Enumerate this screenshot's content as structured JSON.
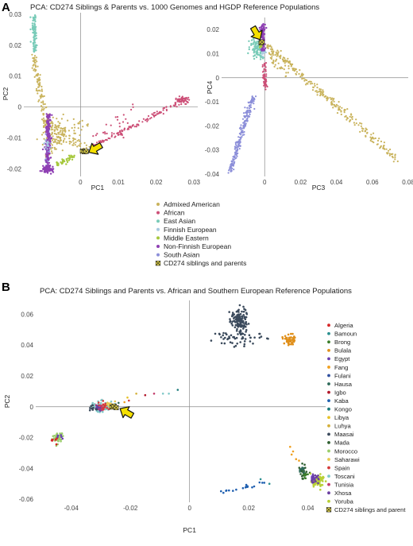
{
  "panel_a": {
    "letter": "A",
    "title": "PCA: CD274 Siblings & Parents vs. 1000 Genomes and HGDP Reference Populations"
  },
  "panel_b": {
    "letter": "B",
    "title": "PCA: CD274 Siblings and Parents vs. African and Southern European Reference Populations"
  },
  "legend_a": [
    {
      "name": "Admixed American",
      "color": "#c9b35c"
    },
    {
      "name": "African",
      "color": "#cc4f77"
    },
    {
      "name": "East Asian",
      "color": "#79cbb8"
    },
    {
      "name": "Finnish European",
      "color": "#a7c8e0"
    },
    {
      "name": "Middle Eastern",
      "color": "#a6c83d"
    },
    {
      "name": "Non-Finnish European",
      "color": "#8e3fb3"
    },
    {
      "name": "South Asian",
      "color": "#8c8fd9"
    },
    {
      "name": "CD274 siblings and parents",
      "color": "#f5e64a",
      "symbol": "cross"
    }
  ],
  "legend_b": [
    {
      "name": "Algeria",
      "color": "#d62728"
    },
    {
      "name": "Bamoun",
      "color": "#2a8f8f"
    },
    {
      "name": "Brong",
      "color": "#3a7d2a"
    },
    {
      "name": "Bulala",
      "color": "#e0901c"
    },
    {
      "name": "Egypt",
      "color": "#6a3fb0"
    },
    {
      "name": "Fang",
      "color": "#f0a020"
    },
    {
      "name": "Fulani",
      "color": "#2f4f9f"
    },
    {
      "name": "Hausa",
      "color": "#2e6a5a"
    },
    {
      "name": "Igbo",
      "color": "#b2182b"
    },
    {
      "name": "Kaba",
      "color": "#2060b0"
    },
    {
      "name": "Kongo",
      "color": "#1a7a7a"
    },
    {
      "name": "Libya",
      "color": "#e6c229"
    },
    {
      "name": "Luhya",
      "color": "#d4b03a"
    },
    {
      "name": "Maasai",
      "color": "#3b4a5c"
    },
    {
      "name": "Mada",
      "color": "#2f5f30"
    },
    {
      "name": "Morocco",
      "color": "#9acd6a"
    },
    {
      "name": "Saharawi",
      "color": "#e8c850"
    },
    {
      "name": "Spain",
      "color": "#d43a3a"
    },
    {
      "name": "Toscani",
      "color": "#7fc8c8"
    },
    {
      "name": "Tunisia",
      "color": "#c23b6b"
    },
    {
      "name": "Xhosa",
      "color": "#6b3fa0"
    },
    {
      "name": "Yoruba",
      "color": "#b8d035"
    },
    {
      "name": "CD274 siblings and parent",
      "color": "#f5e64a",
      "symbol": "cross"
    }
  ],
  "chart_data": [
    {
      "type": "scatter",
      "title": "PCA: CD274 Siblings & Parents vs. 1000 Genomes and HGDP Reference Populations",
      "xlabel": "PC1",
      "ylabel": "PC2",
      "xlim": [
        -0.015,
        0.031
      ],
      "ylim": [
        -0.0225,
        0.0305
      ],
      "xticks": [
        "0",
        "0.01",
        "0.02",
        "0.03"
      ],
      "xtick_values": [
        0,
        0.01,
        0.02,
        0.03
      ],
      "yticks": [
        "-0.02",
        "-0.01",
        "0",
        "0.01",
        "0.02",
        "0.03"
      ],
      "ytick_values": [
        -0.02,
        -0.01,
        0,
        0.01,
        0.02,
        0.03
      ],
      "series": [
        {
          "name": "East Asian",
          "clusters": [
            {
              "x": [
                -0.0125,
                -0.012
              ],
              "y": [
                0.017,
                0.029
              ]
            }
          ]
        },
        {
          "name": "Admixed American",
          "clusters": [
            {
              "x": [
                -0.0115,
                0.002
              ],
              "y": [
                -0.019,
                0.01
              ]
            }
          ]
        },
        {
          "name": "African",
          "clusters": [
            {
              "x": [
                0.003,
                0.029
              ],
              "y": [
                -0.014,
                0.004
              ]
            }
          ]
        },
        {
          "name": "Non-Finnish European",
          "clusters": [
            {
              "x": [
                -0.0095,
                -0.0075
              ],
              "y": [
                -0.0215,
                -0.002
              ]
            }
          ]
        },
        {
          "name": "South Asian",
          "clusters": [
            {
              "x": [
                -0.01,
                -0.007
              ],
              "y": [
                -0.02,
                -0.006
              ]
            }
          ]
        },
        {
          "name": "Middle Eastern",
          "clusters": [
            {
              "x": [
                -0.006,
                -0.002
              ],
              "y": [
                -0.019,
                -0.015
              ]
            }
          ]
        },
        {
          "name": "CD274 siblings and parents",
          "points": [
            {
              "x": 0.0005,
              "y": -0.0143
            },
            {
              "x": 0.001,
              "y": -0.0145
            },
            {
              "x": 0.0015,
              "y": -0.0144
            }
          ]
        }
      ]
    },
    {
      "type": "scatter",
      "xlabel": "PC3",
      "ylabel": "PC4",
      "xlim": [
        -0.024,
        0.08
      ],
      "ylim": [
        -0.041,
        0.025
      ],
      "xticks": [
        "0",
        "0.02",
        "0.04",
        "0.06",
        "0.08"
      ],
      "xtick_values": [
        0,
        0.02,
        0.04,
        0.06,
        0.08
      ],
      "yticks": [
        "-0.04",
        "-0.03",
        "-0.02",
        "-0.01",
        "0",
        "0.01",
        "0.02"
      ],
      "ytick_values": [
        -0.04,
        -0.03,
        -0.02,
        -0.01,
        0,
        0.01,
        0.02
      ],
      "series": [
        {
          "name": "Admixed American",
          "clusters": [
            {
              "x": [
                -0.002,
                0.074
              ],
              "y": [
                -0.034,
                0.015
              ]
            }
          ]
        },
        {
          "name": "South Asian",
          "clusters": [
            {
              "x": [
                -0.02,
                -0.006
              ],
              "y": [
                -0.039,
                -0.008
              ]
            }
          ]
        },
        {
          "name": "East Asian",
          "clusters": [
            {
              "x": [
                -0.008,
                0.0
              ],
              "y": [
                0.008,
                0.017
              ]
            }
          ]
        },
        {
          "name": "African",
          "clusters": [
            {
              "x": [
                -0.001,
                0.001
              ],
              "y": [
                -0.004,
                0.006
              ]
            }
          ]
        },
        {
          "name": "Non-Finnish European",
          "clusters": [
            {
              "x": [
                -0.002,
                0.0
              ],
              "y": [
                0.012,
                0.022
              ]
            }
          ]
        },
        {
          "name": "CD274 siblings and parents",
          "points": [
            {
              "x": -0.002,
              "y": 0.0145
            },
            {
              "x": -0.0015,
              "y": 0.0148
            }
          ]
        }
      ]
    },
    {
      "type": "scatter",
      "title": "PCA: CD274 Siblings and Parents vs. African and Southern European Reference Populations",
      "xlabel": "PC1",
      "ylabel": "PC2",
      "xlim": [
        -0.052,
        0.046
      ],
      "ylim": [
        -0.062,
        0.069
      ],
      "xticks": [
        "-0.04",
        "-0.02",
        "0",
        "0.02",
        "0.04"
      ],
      "xtick_values": [
        -0.04,
        -0.02,
        0,
        0.02,
        0.04
      ],
      "yticks": [
        "-0.06",
        "-0.04",
        "-0.02",
        "0",
        "0.02",
        "0.04",
        "0.06"
      ],
      "ytick_values": [
        -0.06,
        -0.04,
        -0.02,
        0,
        0.02,
        0.04,
        0.06
      ],
      "series": [
        {
          "name": "Maasai",
          "clusters": [
            {
              "x": [
                0.008,
                0.026
              ],
              "y": [
                0.038,
                0.067
              ]
            }
          ]
        },
        {
          "name": "Bulala",
          "clusters": [
            {
              "x": [
                0.032,
                0.036
              ],
              "y": [
                0.041,
                0.046
              ]
            }
          ]
        },
        {
          "name": "Morocco",
          "clusters": [
            {
              "x": [
                -0.046,
                -0.043
              ],
              "y": [
                -0.023,
                -0.018
              ]
            }
          ]
        },
        {
          "name": "Toscani",
          "clusters": [
            {
              "x": [
                -0.033,
                -0.026
              ],
              "y": [
                -0.003,
                0.003
              ]
            }
          ]
        },
        {
          "name": "Yoruba",
          "clusters": [
            {
              "x": [
                0.041,
                0.045
              ],
              "y": [
                -0.051,
                -0.044
              ]
            }
          ]
        },
        {
          "name": "Kaba",
          "clusters": [
            {
              "x": [
                0.01,
                0.027
              ],
              "y": [
                -0.056,
                -0.048
              ]
            }
          ]
        },
        {
          "name": "Mada",
          "clusters": [
            {
              "x": [
                0.037,
                0.041
              ],
              "y": [
                -0.047,
                -0.038
              ]
            }
          ]
        },
        {
          "name": "CD274 siblings and parent",
          "points": [
            {
              "x": -0.0262,
              "y": -0.0002
            },
            {
              "x": -0.0255,
              "y": 0.0004
            },
            {
              "x": -0.0248,
              "y": -0.0006
            }
          ]
        }
      ]
    }
  ]
}
